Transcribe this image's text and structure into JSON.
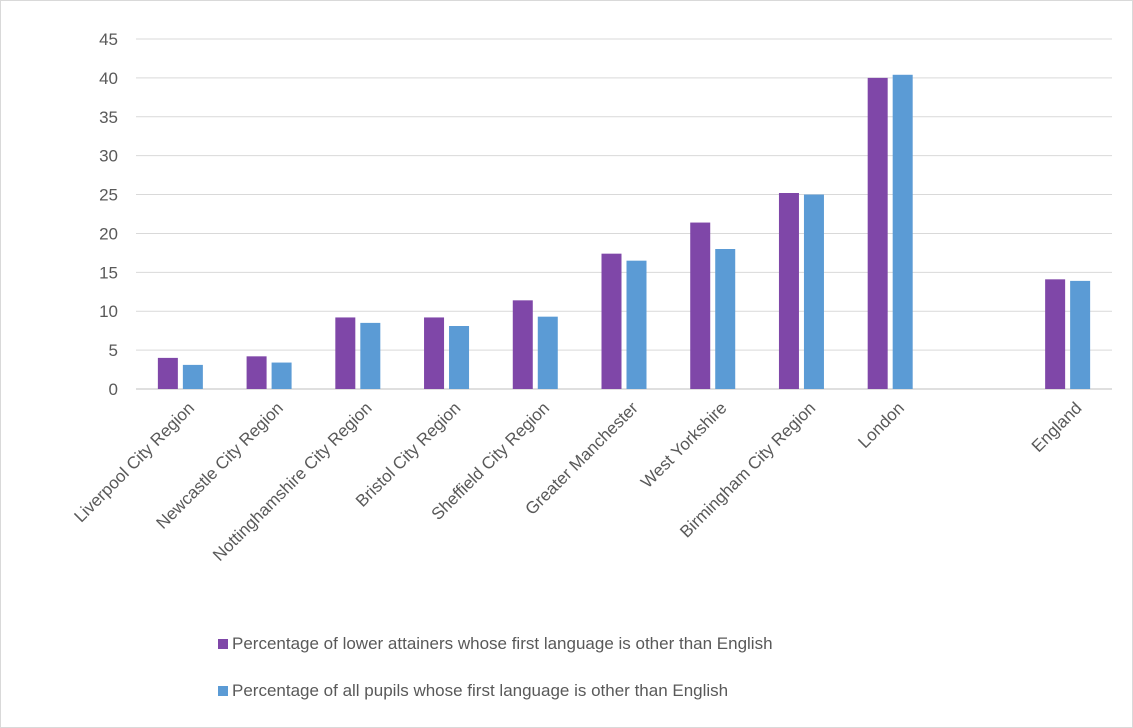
{
  "chart_data": {
    "type": "bar",
    "title": "",
    "xlabel": "",
    "ylabel": "",
    "ylim": [
      0,
      45
    ],
    "yticks": [
      0,
      5,
      10,
      15,
      20,
      25,
      30,
      35,
      40,
      45
    ],
    "grid": true,
    "legend_position": "bottom",
    "categories": [
      "Liverpool City Region",
      "Newcastle City Region",
      "Nottinghamshire City Region",
      "Bristol City Region",
      "Sheffield City Region",
      "Greater Manchester",
      "West Yorkshire",
      "Birmingham City Region",
      "London",
      "",
      "England"
    ],
    "series": [
      {
        "name": "Percentage of lower attainers whose first language is other than English",
        "color": "#7f47a8",
        "values": [
          4.0,
          4.2,
          9.2,
          9.2,
          11.4,
          17.4,
          21.4,
          25.2,
          40.0,
          null,
          14.1
        ]
      },
      {
        "name": "Percentage of all pupils whose first language is other than English",
        "color": "#5b9bd5",
        "values": [
          3.1,
          3.4,
          8.5,
          8.1,
          9.3,
          16.5,
          18.0,
          25.0,
          40.4,
          null,
          13.9
        ]
      }
    ]
  }
}
